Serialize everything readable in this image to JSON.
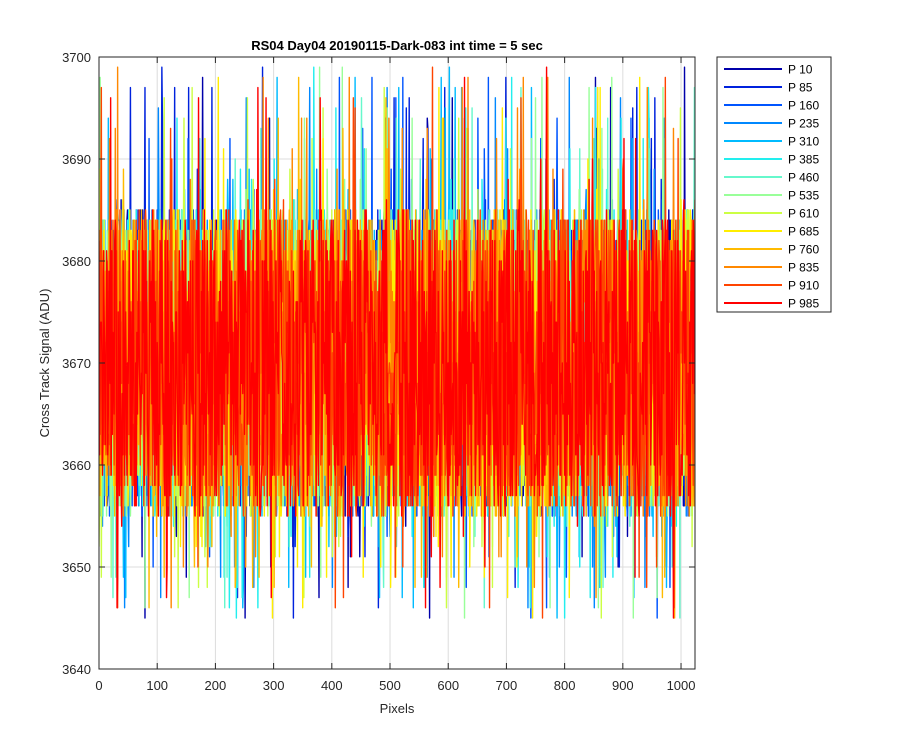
{
  "chart_data": {
    "type": "line",
    "title": "RS04 Day04 20190115-Dark-083 int time = 5 sec",
    "xlabel": "Pixels",
    "ylabel": "Cross Track Signal (ADU)",
    "xlim": [
      0,
      1024
    ],
    "ylim": [
      3640,
      3700
    ],
    "xticks": [
      0,
      100,
      200,
      300,
      400,
      500,
      600,
      700,
      800,
      900,
      1000
    ],
    "yticks": [
      3640,
      3650,
      3660,
      3670,
      3680,
      3690,
      3700
    ],
    "grid": true,
    "legend_position": "outside-top-right",
    "series_profile": {
      "x_start": 0,
      "x_end": 1024,
      "mean": 3670,
      "typical_min": 3655,
      "typical_max": 3685,
      "extreme_min": 3645,
      "extreme_max": 3699
    },
    "series": [
      {
        "name": "P 10",
        "color": "#0000AA"
      },
      {
        "name": "P 85",
        "color": "#0022DD"
      },
      {
        "name": "P 160",
        "color": "#0055FF"
      },
      {
        "name": "P 235",
        "color": "#0088FF"
      },
      {
        "name": "P 310",
        "color": "#00BBFF"
      },
      {
        "name": "P 385",
        "color": "#22EEEE"
      },
      {
        "name": "P 460",
        "color": "#66F8CC"
      },
      {
        "name": "P 535",
        "color": "#99FF99"
      },
      {
        "name": "P 610",
        "color": "#CCFF44"
      },
      {
        "name": "P 685",
        "color": "#FFEE00"
      },
      {
        "name": "P 760",
        "color": "#FFBB00"
      },
      {
        "name": "P 835",
        "color": "#FF8800"
      },
      {
        "name": "P 910",
        "color": "#FF4400"
      },
      {
        "name": "P 985",
        "color": "#FF0000"
      }
    ]
  }
}
